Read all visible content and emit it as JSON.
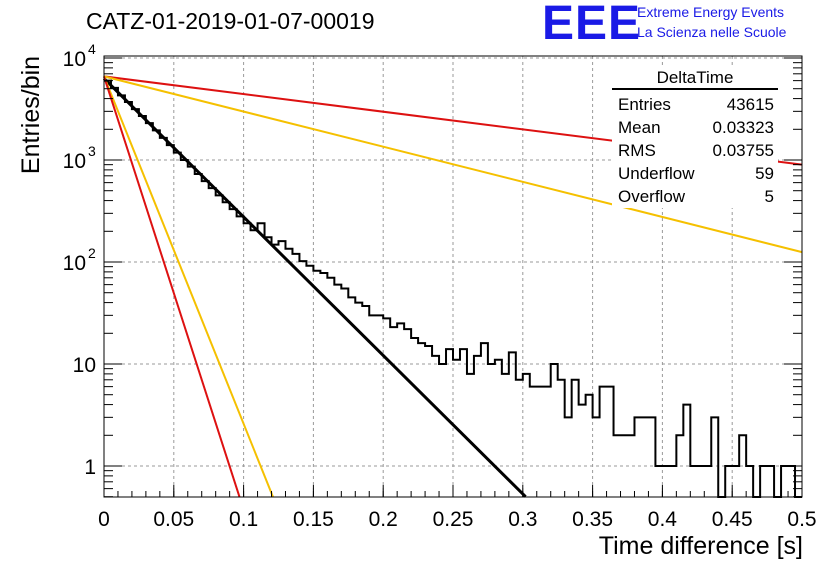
{
  "header": {
    "title": "CATZ-01-2019-01-07-00019",
    "logo_text": "EEE",
    "logo_line1": "Extreme Energy Events",
    "logo_line2": "La Scienza nelle Scuole"
  },
  "colors": {
    "histogram": "#000000",
    "fit": "#000000",
    "red": "#dd1111",
    "orange": "#f5c000",
    "logo": "#1a1ae6",
    "grid": "#9a9a9a"
  },
  "stats": {
    "name": "DeltaTime",
    "rows": [
      {
        "label": "Entries",
        "value": "43615"
      },
      {
        "label": "Mean",
        "value": "0.03323"
      },
      {
        "label": "RMS",
        "value": "0.03755"
      },
      {
        "label": "Underflow",
        "value": "59"
      },
      {
        "label": "Overflow",
        "value": "5"
      }
    ]
  },
  "chart_data": {
    "type": "line",
    "title": "CATZ-01-2019-01-07-00019",
    "xlabel": "Time difference [s]",
    "ylabel": "Entries/bin",
    "xlim": [
      0,
      0.5
    ],
    "ylim": [
      0.5,
      12000
    ],
    "yscale": "log",
    "grid": true,
    "x_ticks": [
      "0",
      "0.05",
      "0.1",
      "0.15",
      "0.2",
      "0.25",
      "0.3",
      "0.35",
      "0.4",
      "0.45",
      "0.5"
    ],
    "y_ticks": [
      {
        "value": 1,
        "label": "1"
      },
      {
        "value": 10,
        "label": "10"
      },
      {
        "value": 100,
        "label": "10",
        "exp": "2"
      },
      {
        "value": 1000,
        "label": "10",
        "exp": "3"
      },
      {
        "value": 10000,
        "label": "10",
        "exp": "4"
      }
    ],
    "histogram": {
      "bin_width": 0.005,
      "bin_start": 0,
      "counts": [
        6000,
        5100,
        4300,
        3700,
        3150,
        2700,
        2300,
        1950,
        1650,
        1400,
        1180,
        1000,
        860,
        730,
        620,
        530,
        450,
        385,
        330,
        280,
        240,
        205,
        240,
        175,
        148,
        160,
        135,
        120,
        102,
        92,
        82,
        78,
        70,
        60,
        55,
        45,
        40,
        37,
        30,
        30,
        28,
        23,
        25,
        22,
        18,
        16,
        15,
        12,
        10,
        14,
        11,
        14,
        8,
        12,
        16,
        10,
        11,
        8,
        13,
        7,
        8,
        6,
        6,
        6,
        10,
        7,
        3,
        7,
        4,
        5,
        3,
        6,
        6,
        2,
        2,
        2,
        3,
        3,
        3,
        1,
        1,
        1,
        2,
        4,
        1,
        1,
        1,
        3,
        0.4,
        1,
        1,
        2,
        1,
        0.4,
        1,
        1,
        0.4,
        1,
        1,
        0.4
      ]
    },
    "series": [
      {
        "style": "fit",
        "color": "#000000",
        "x": [
          0,
          0.302
        ],
        "y": [
          6300,
          0.5
        ]
      },
      {
        "color": "#dd1111",
        "x": [
          0,
          0.5
        ],
        "y": [
          6600,
          900
        ]
      },
      {
        "color": "#f5c000",
        "x": [
          0,
          0.5
        ],
        "y": [
          6600,
          125
        ]
      },
      {
        "color": "#f5c000",
        "x": [
          0,
          0.121
        ],
        "y": [
          6600,
          0.5
        ]
      },
      {
        "color": "#dd1111",
        "x": [
          0,
          0.097
        ],
        "y": [
          6600,
          0.5
        ]
      }
    ]
  }
}
